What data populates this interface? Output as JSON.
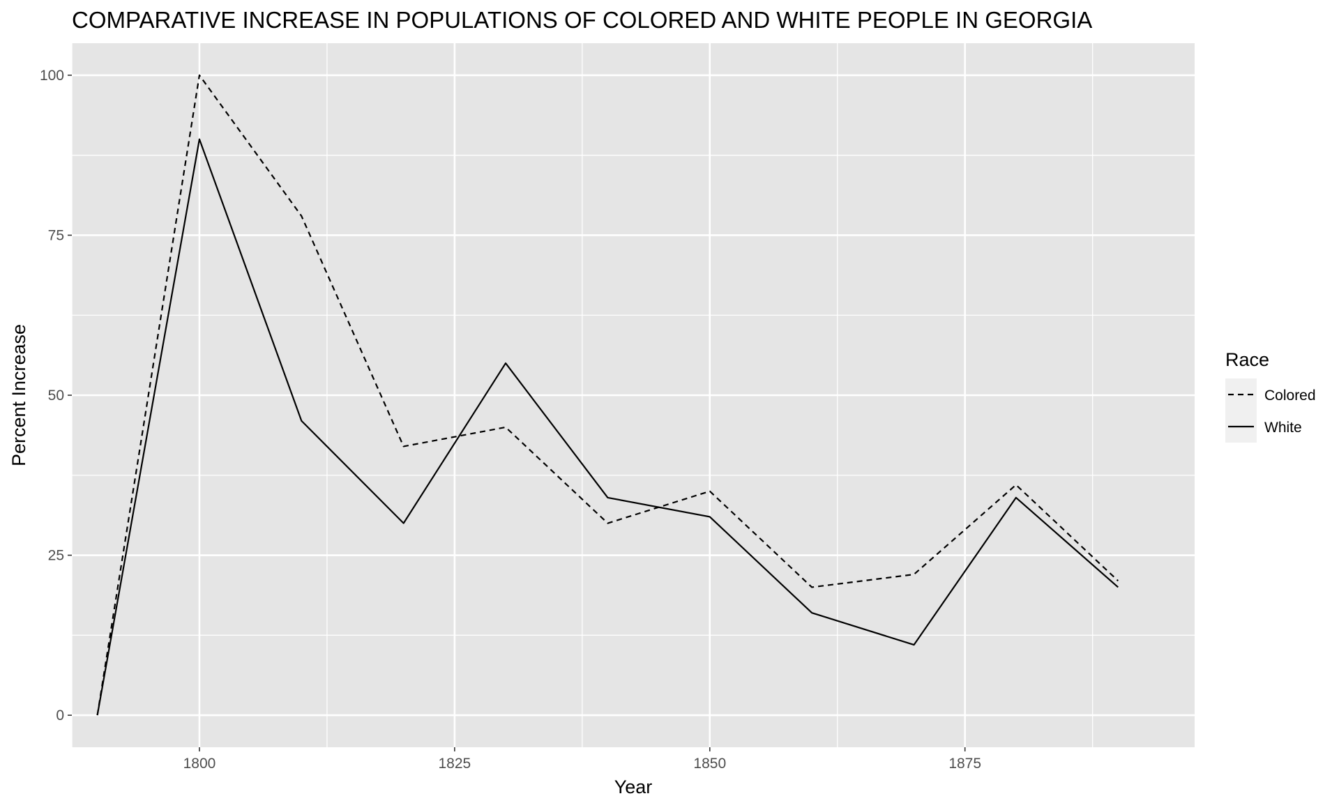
{
  "chart_data": {
    "type": "line",
    "title": "COMPARATIVE INCREASE IN POPULATIONS OF COLORED AND WHITE PEOPLE IN GEORGIA",
    "xlabel": "Year",
    "ylabel": "Percent Increase",
    "x": [
      1790,
      1800,
      1810,
      1820,
      1830,
      1840,
      1850,
      1860,
      1870,
      1880,
      1890
    ],
    "series": [
      {
        "name": "Colored",
        "line_style": "dashed",
        "values": [
          0,
          100,
          78,
          42,
          45,
          30,
          35,
          20,
          22,
          36,
          21
        ]
      },
      {
        "name": "White",
        "line_style": "solid",
        "values": [
          0,
          90,
          46,
          30,
          55,
          34,
          31,
          16,
          11,
          34,
          20
        ]
      }
    ],
    "xlim": [
      1787.5,
      1897.5
    ],
    "ylim": [
      -5,
      105
    ],
    "xticks": [
      1800,
      1825,
      1850,
      1875
    ],
    "xtick_labels": [
      "1800",
      "1825",
      "1850",
      "1875"
    ],
    "yticks": [
      0,
      25,
      50,
      75,
      100
    ],
    "ytick_labels": [
      "0",
      "25",
      "50",
      "75",
      "100"
    ],
    "grid": true,
    "legend": {
      "title": "Race",
      "position": "right"
    },
    "colors": {
      "panel_background": "#e5e5e5",
      "grid": "#ffffff",
      "line": "#000000",
      "tick_text": "#4d4d4d",
      "tick_mark": "#333333",
      "legend_key_background": "#f0f0f0"
    }
  }
}
